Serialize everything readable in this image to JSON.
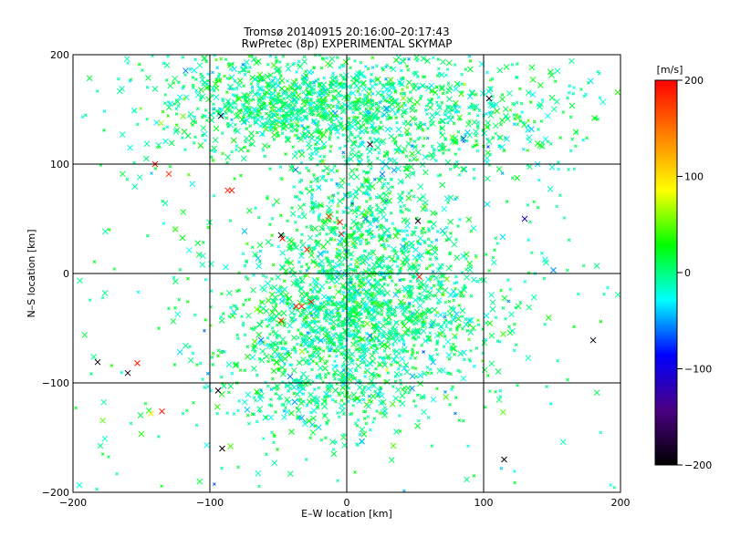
{
  "chart_data": {
    "type": "scatter",
    "title": "Tromsø 20140915 20:16:00–20:17:43",
    "subtitle": "RwPretec (8p) EXPERIMENTAL SKYMAP",
    "xlabel": "E–W location [km]",
    "ylabel": "N–S location [km]",
    "xlim": [
      -200,
      200
    ],
    "ylim": [
      -200,
      200
    ],
    "xticks": [
      -200,
      -100,
      0,
      100,
      200
    ],
    "yticks": [
      -200,
      -100,
      0,
      100,
      200
    ],
    "grid": true,
    "colorbar": {
      "label": "[m/s]",
      "range": [
        -200,
        200
      ],
      "ticks": [
        200,
        100,
        0,
        -100,
        -200
      ],
      "colormap": [
        "#000000",
        "#4b0082",
        "#0000ff",
        "#00ffff",
        "#00ff00",
        "#ffff00",
        "#ff8000",
        "#ff0000"
      ]
    },
    "clusters": [
      {
        "cx": -35,
        "cy": 158,
        "sx": 40,
        "sy": 22,
        "n": 650
      },
      {
        "cx": 45,
        "cy": 150,
        "sx": 65,
        "sy": 28,
        "n": 700
      },
      {
        "cx": -110,
        "cy": 160,
        "sx": 30,
        "sy": 25,
        "n": 120
      },
      {
        "cx": 10,
        "cy": 55,
        "sx": 30,
        "sy": 30,
        "n": 420
      },
      {
        "cx": 10,
        "cy": -35,
        "sx": 45,
        "sy": 35,
        "n": 1400
      },
      {
        "cx": -25,
        "cy": -110,
        "sx": 35,
        "sy": 25,
        "n": 300
      },
      {
        "cx": 0,
        "cy": 0,
        "sx": 130,
        "sy": 130,
        "n": 600
      }
    ],
    "outliers": [
      {
        "x": -140,
        "y": 100,
        "v": 190
      },
      {
        "x": -130,
        "y": 91,
        "v": 180
      },
      {
        "x": -87,
        "y": 76,
        "v": 185
      },
      {
        "x": -84,
        "y": 76,
        "v": 190
      },
      {
        "x": -47,
        "y": 32,
        "v": 195
      },
      {
        "x": -29,
        "y": 22,
        "v": 190
      },
      {
        "x": -13,
        "y": 52,
        "v": 180
      },
      {
        "x": -5,
        "y": 47,
        "v": 190
      },
      {
        "x": -4,
        "y": 36,
        "v": 185
      },
      {
        "x": -37,
        "y": -30,
        "v": 190
      },
      {
        "x": -33,
        "y": -30,
        "v": 185
      },
      {
        "x": -26,
        "y": -26,
        "v": 190
      },
      {
        "x": -48,
        "y": -43,
        "v": 180
      },
      {
        "x": -153,
        "y": -82,
        "v": 190
      },
      {
        "x": -135,
        "y": -126,
        "v": 195
      },
      {
        "x": 53,
        "y": -3,
        "v": 190
      },
      {
        "x": -48,
        "y": 35,
        "v": -195
      },
      {
        "x": 17,
        "y": 118,
        "v": -195
      },
      {
        "x": -92,
        "y": 144,
        "v": -190
      },
      {
        "x": 52,
        "y": 48,
        "v": -190
      },
      {
        "x": 104,
        "y": 160,
        "v": -180
      },
      {
        "x": -182,
        "y": -81,
        "v": -195
      },
      {
        "x": -160,
        "y": -91,
        "v": -195
      },
      {
        "x": -94,
        "y": -107,
        "v": -195
      },
      {
        "x": -91,
        "y": -160,
        "v": -195
      },
      {
        "x": 115,
        "y": -170,
        "v": -195
      },
      {
        "x": 180,
        "y": -61,
        "v": -190
      },
      {
        "x": 130,
        "y": 50,
        "v": -120
      },
      {
        "x": -143,
        "y": -128,
        "v": 95
      }
    ]
  }
}
